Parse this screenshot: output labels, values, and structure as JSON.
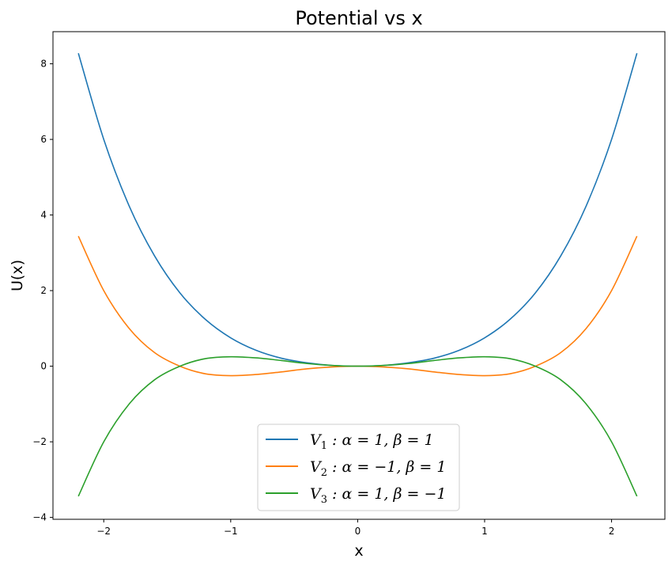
{
  "chart_data": {
    "type": "line",
    "title": "Potential vs x",
    "xlabel": "x",
    "ylabel": "U(x)",
    "xlim": [
      -2.4,
      2.42
    ],
    "ylim": [
      -4.05,
      8.85
    ],
    "xticks": [
      -2,
      -1,
      0,
      1,
      2
    ],
    "xtick_labels": [
      "−2",
      "−1",
      "0",
      "1",
      "2"
    ],
    "yticks": [
      -4,
      -2,
      0,
      2,
      4,
      6,
      8
    ],
    "ytick_labels": [
      "−4",
      "−2",
      "0",
      "2",
      "4",
      "6",
      "8"
    ],
    "grid": false,
    "legend_position": "lower-center",
    "x": [
      -2.2,
      -2.0,
      -1.8,
      -1.6,
      -1.4,
      -1.2,
      -1.0,
      -0.8,
      -0.6,
      -0.4,
      -0.2,
      0.0,
      0.2,
      0.4,
      0.6,
      0.8,
      1.0,
      1.2,
      1.4,
      1.6,
      1.8,
      2.0,
      2.2
    ],
    "series": [
      {
        "name": "V_1 : α = 1, β = 1",
        "legend_parts": [
          "V",
          "1",
          " : α = 1, β = 1"
        ],
        "color": "#1f77b4",
        "values": [
          8.28,
          6.0,
          4.24,
          2.92,
          1.94,
          1.24,
          0.75,
          0.42,
          0.21,
          0.09,
          0.02,
          0.0,
          0.02,
          0.09,
          0.21,
          0.42,
          0.75,
          1.24,
          1.94,
          2.92,
          4.24,
          6.0,
          8.28
        ]
      },
      {
        "name": "V_2 : α = −1, β = 1",
        "legend_parts": [
          "V",
          "2",
          " : α = −1, β = 1"
        ],
        "color": "#ff7f0e",
        "values": [
          3.44,
          2.0,
          1.0,
          0.36,
          0.0,
          -0.2,
          -0.25,
          -0.22,
          -0.15,
          -0.07,
          -0.02,
          0.0,
          -0.02,
          -0.07,
          -0.15,
          -0.22,
          -0.25,
          -0.2,
          0.0,
          0.36,
          1.0,
          2.0,
          3.44
        ]
      },
      {
        "name": "V_3 : α = 1, β = −1",
        "legend_parts": [
          "V",
          "3",
          " : α = 1, β = −1"
        ],
        "color": "#2ca02c",
        "values": [
          -3.44,
          -2.0,
          -1.0,
          -0.36,
          0.0,
          0.2,
          0.25,
          0.22,
          0.15,
          0.07,
          0.02,
          0.0,
          0.02,
          0.07,
          0.15,
          0.22,
          0.25,
          0.2,
          0.0,
          -0.36,
          -1.0,
          -2.0,
          -3.44
        ]
      }
    ]
  }
}
